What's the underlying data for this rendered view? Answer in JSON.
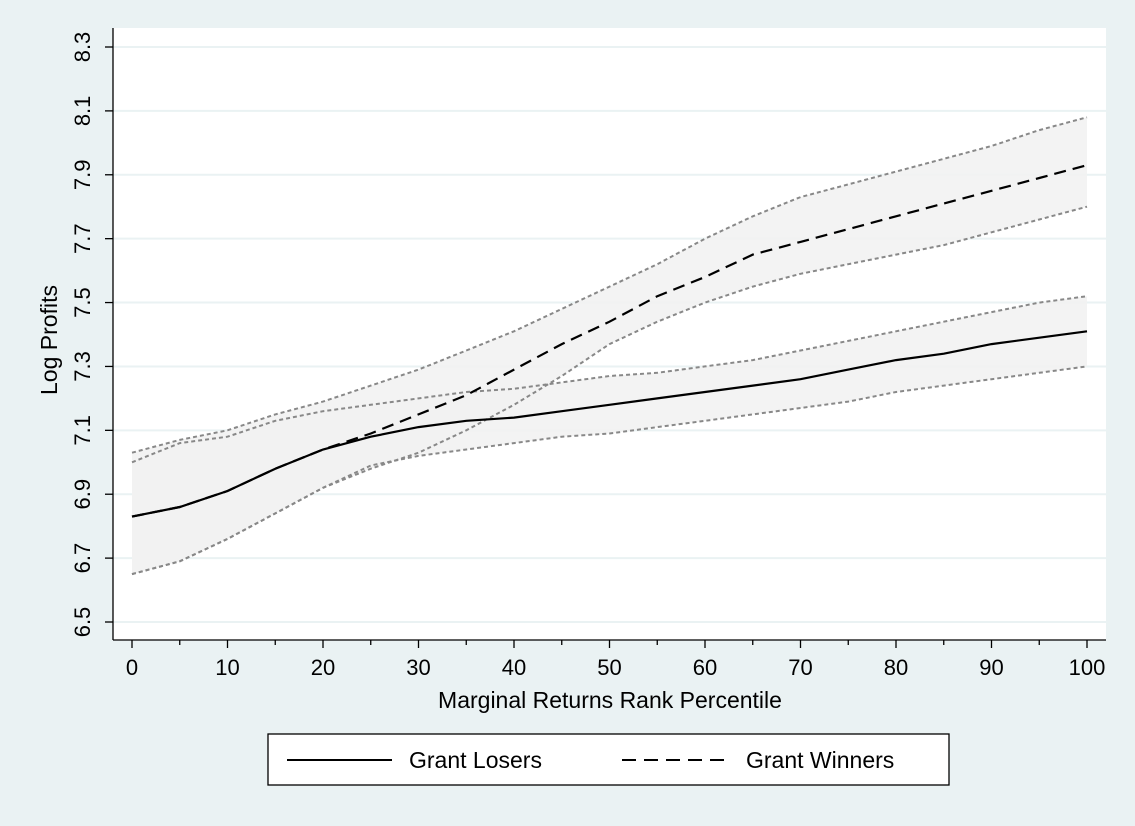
{
  "chart_data": {
    "type": "line",
    "title": "",
    "xlabel": "Marginal Returns Rank Percentile",
    "ylabel": "Log Profits",
    "xlim": [
      0,
      100
    ],
    "ylim": [
      6.5,
      8.3
    ],
    "xticks": [
      0,
      10,
      20,
      30,
      40,
      50,
      60,
      70,
      80,
      90,
      100
    ],
    "yticks": [
      6.5,
      6.7,
      6.9,
      7.1,
      7.3,
      7.5,
      7.7,
      7.9,
      8.1,
      8.3
    ],
    "grid": true,
    "legend_position": "bottom",
    "x": [
      0,
      5,
      10,
      15,
      20,
      25,
      30,
      35,
      40,
      45,
      50,
      55,
      60,
      65,
      70,
      75,
      80,
      85,
      90,
      95,
      100
    ],
    "series": [
      {
        "name": "Grant Losers",
        "line_style": "solid",
        "color": "#000000",
        "values": [
          6.83,
          6.86,
          6.91,
          6.98,
          7.04,
          7.08,
          7.11,
          7.13,
          7.14,
          7.16,
          7.18,
          7.2,
          7.22,
          7.24,
          7.26,
          7.29,
          7.32,
          7.34,
          7.37,
          7.39,
          7.41
        ],
        "ci_lower": [
          6.65,
          6.69,
          6.76,
          6.84,
          6.92,
          6.99,
          7.02,
          7.04,
          7.06,
          7.08,
          7.09,
          7.11,
          7.13,
          7.15,
          7.17,
          7.19,
          7.22,
          7.24,
          7.26,
          7.28,
          7.3
        ],
        "ci_upper": [
          7.0,
          7.06,
          7.08,
          7.13,
          7.16,
          7.18,
          7.2,
          7.22,
          7.23,
          7.25,
          7.27,
          7.28,
          7.3,
          7.32,
          7.35,
          7.38,
          7.41,
          7.44,
          7.47,
          7.5,
          7.52
        ]
      },
      {
        "name": "Grant Winners",
        "line_style": "dashed",
        "color": "#000000",
        "values": [
          6.83,
          6.86,
          6.91,
          6.98,
          7.04,
          7.09,
          7.15,
          7.21,
          7.29,
          7.37,
          7.44,
          7.52,
          7.58,
          7.65,
          7.69,
          7.73,
          7.77,
          7.81,
          7.85,
          7.89,
          7.93
        ],
        "ci_lower": [
          6.65,
          6.69,
          6.76,
          6.84,
          6.92,
          6.98,
          7.03,
          7.1,
          7.18,
          7.27,
          7.37,
          7.44,
          7.5,
          7.55,
          7.59,
          7.62,
          7.65,
          7.68,
          7.72,
          7.76,
          7.8
        ],
        "ci_upper": [
          7.03,
          7.07,
          7.1,
          7.15,
          7.19,
          7.24,
          7.29,
          7.35,
          7.41,
          7.48,
          7.55,
          7.62,
          7.7,
          7.77,
          7.83,
          7.87,
          7.91,
          7.95,
          7.99,
          8.04,
          8.08
        ]
      }
    ],
    "colors": {
      "background": "#eaf2f3",
      "plot_background": "#ffffff",
      "grid": "#eaf2f3",
      "ci_fill": "#f2f2f2",
      "ci_border": "#888888"
    }
  }
}
